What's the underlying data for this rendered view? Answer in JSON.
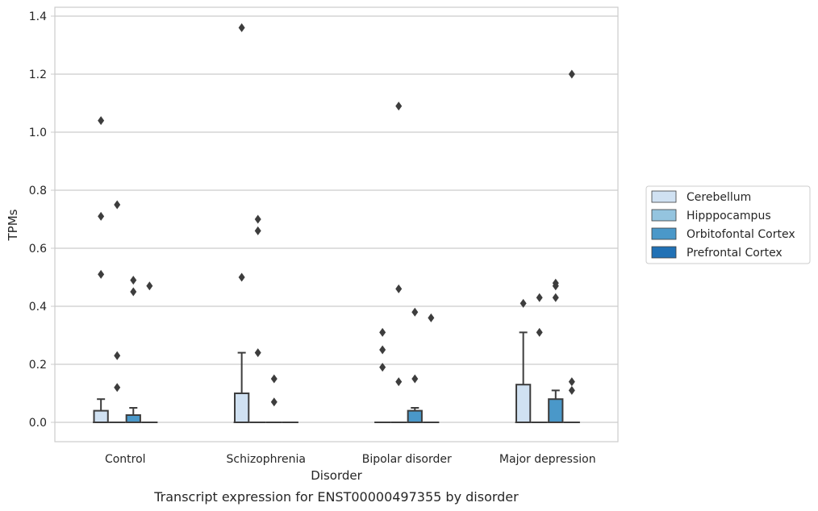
{
  "chart_data": {
    "type": "box",
    "title": "",
    "caption": "Transcript expression for ENST00000497355 by disorder",
    "xlabel": "Disorder",
    "ylabel": "TPMs",
    "ylim": [
      -0.065,
      1.43
    ],
    "yticks": [
      "0.0",
      "0.2",
      "0.4",
      "0.6",
      "0.8",
      "1.0",
      "1.2",
      "1.4"
    ],
    "ytick_values": [
      0,
      0.2,
      0.4,
      0.6,
      0.8,
      1.0,
      1.2,
      1.4
    ],
    "categories": [
      "Control",
      "Schizophrenia",
      "Bipolar disorder",
      "Major depression"
    ],
    "grid": "horizontal",
    "legend_position": "right",
    "series": [
      {
        "name": "Cerebellum",
        "color": "#d0e1f2",
        "boxes": [
          {
            "q1": 0,
            "median": 0,
            "q3": 0.04,
            "whisker_low": 0,
            "whisker_high": 0.08,
            "outliers": [
              1.04,
              0.71,
              0.51
            ]
          },
          {
            "q1": 0,
            "median": 0,
            "q3": 0.1,
            "whisker_low": 0,
            "whisker_high": 0.24,
            "outliers": [
              1.36,
              0.5
            ]
          },
          {
            "q1": 0,
            "median": 0,
            "q3": 0,
            "whisker_low": 0,
            "whisker_high": 0,
            "outliers": [
              0.31,
              0.25,
              0.19
            ]
          },
          {
            "q1": 0,
            "median": 0,
            "q3": 0.13,
            "whisker_low": 0,
            "whisker_high": 0.31,
            "outliers": [
              0.41
            ]
          }
        ]
      },
      {
        "name": "Hipppocampus",
        "color": "#94c4df",
        "boxes": [
          {
            "q1": 0,
            "median": 0,
            "q3": 0,
            "whisker_low": 0,
            "whisker_high": 0,
            "outliers": [
              0.75,
              0.23,
              0.12
            ]
          },
          {
            "q1": 0,
            "median": 0,
            "q3": 0,
            "whisker_low": 0,
            "whisker_high": 0,
            "outliers": [
              0.7,
              0.66,
              0.24
            ]
          },
          {
            "q1": 0,
            "median": 0,
            "q3": 0,
            "whisker_low": 0,
            "whisker_high": 0,
            "outliers": [
              1.09,
              0.46,
              0.14
            ]
          },
          {
            "q1": 0,
            "median": 0,
            "q3": 0,
            "whisker_low": 0,
            "whisker_high": 0,
            "outliers": [
              0.43,
              0.31
            ]
          }
        ]
      },
      {
        "name": "Orbitofontal Cortex",
        "color": "#4a98c9",
        "boxes": [
          {
            "q1": 0,
            "median": 0,
            "q3": 0.025,
            "whisker_low": 0,
            "whisker_high": 0.05,
            "outliers": [
              0.49,
              0.45
            ]
          },
          {
            "q1": 0,
            "median": 0,
            "q3": 0,
            "whisker_low": 0,
            "whisker_high": 0,
            "outliers": [
              0.15,
              0.07
            ]
          },
          {
            "q1": 0,
            "median": 0,
            "q3": 0.04,
            "whisker_low": 0,
            "whisker_high": 0.05,
            "outliers": [
              0.38,
              0.15
            ]
          },
          {
            "q1": 0,
            "median": 0,
            "q3": 0.08,
            "whisker_low": 0,
            "whisker_high": 0.11,
            "outliers": [
              0.48,
              0.47,
              0.43
            ]
          }
        ]
      },
      {
        "name": "Prefrontal Cortex",
        "color": "#2171b5",
        "boxes": [
          {
            "q1": 0,
            "median": 0,
            "q3": 0,
            "whisker_low": 0,
            "whisker_high": 0,
            "outliers": [
              0.47
            ]
          },
          {
            "q1": 0,
            "median": 0,
            "q3": 0,
            "whisker_low": 0,
            "whisker_high": 0,
            "outliers": []
          },
          {
            "q1": 0,
            "median": 0,
            "q3": 0,
            "whisker_low": 0,
            "whisker_high": 0,
            "outliers": [
              0.36
            ]
          },
          {
            "q1": 0,
            "median": 0,
            "q3": 0,
            "whisker_low": 0,
            "whisker_high": 0,
            "outliers": [
              1.2,
              0.14,
              0.11
            ]
          }
        ]
      }
    ]
  }
}
